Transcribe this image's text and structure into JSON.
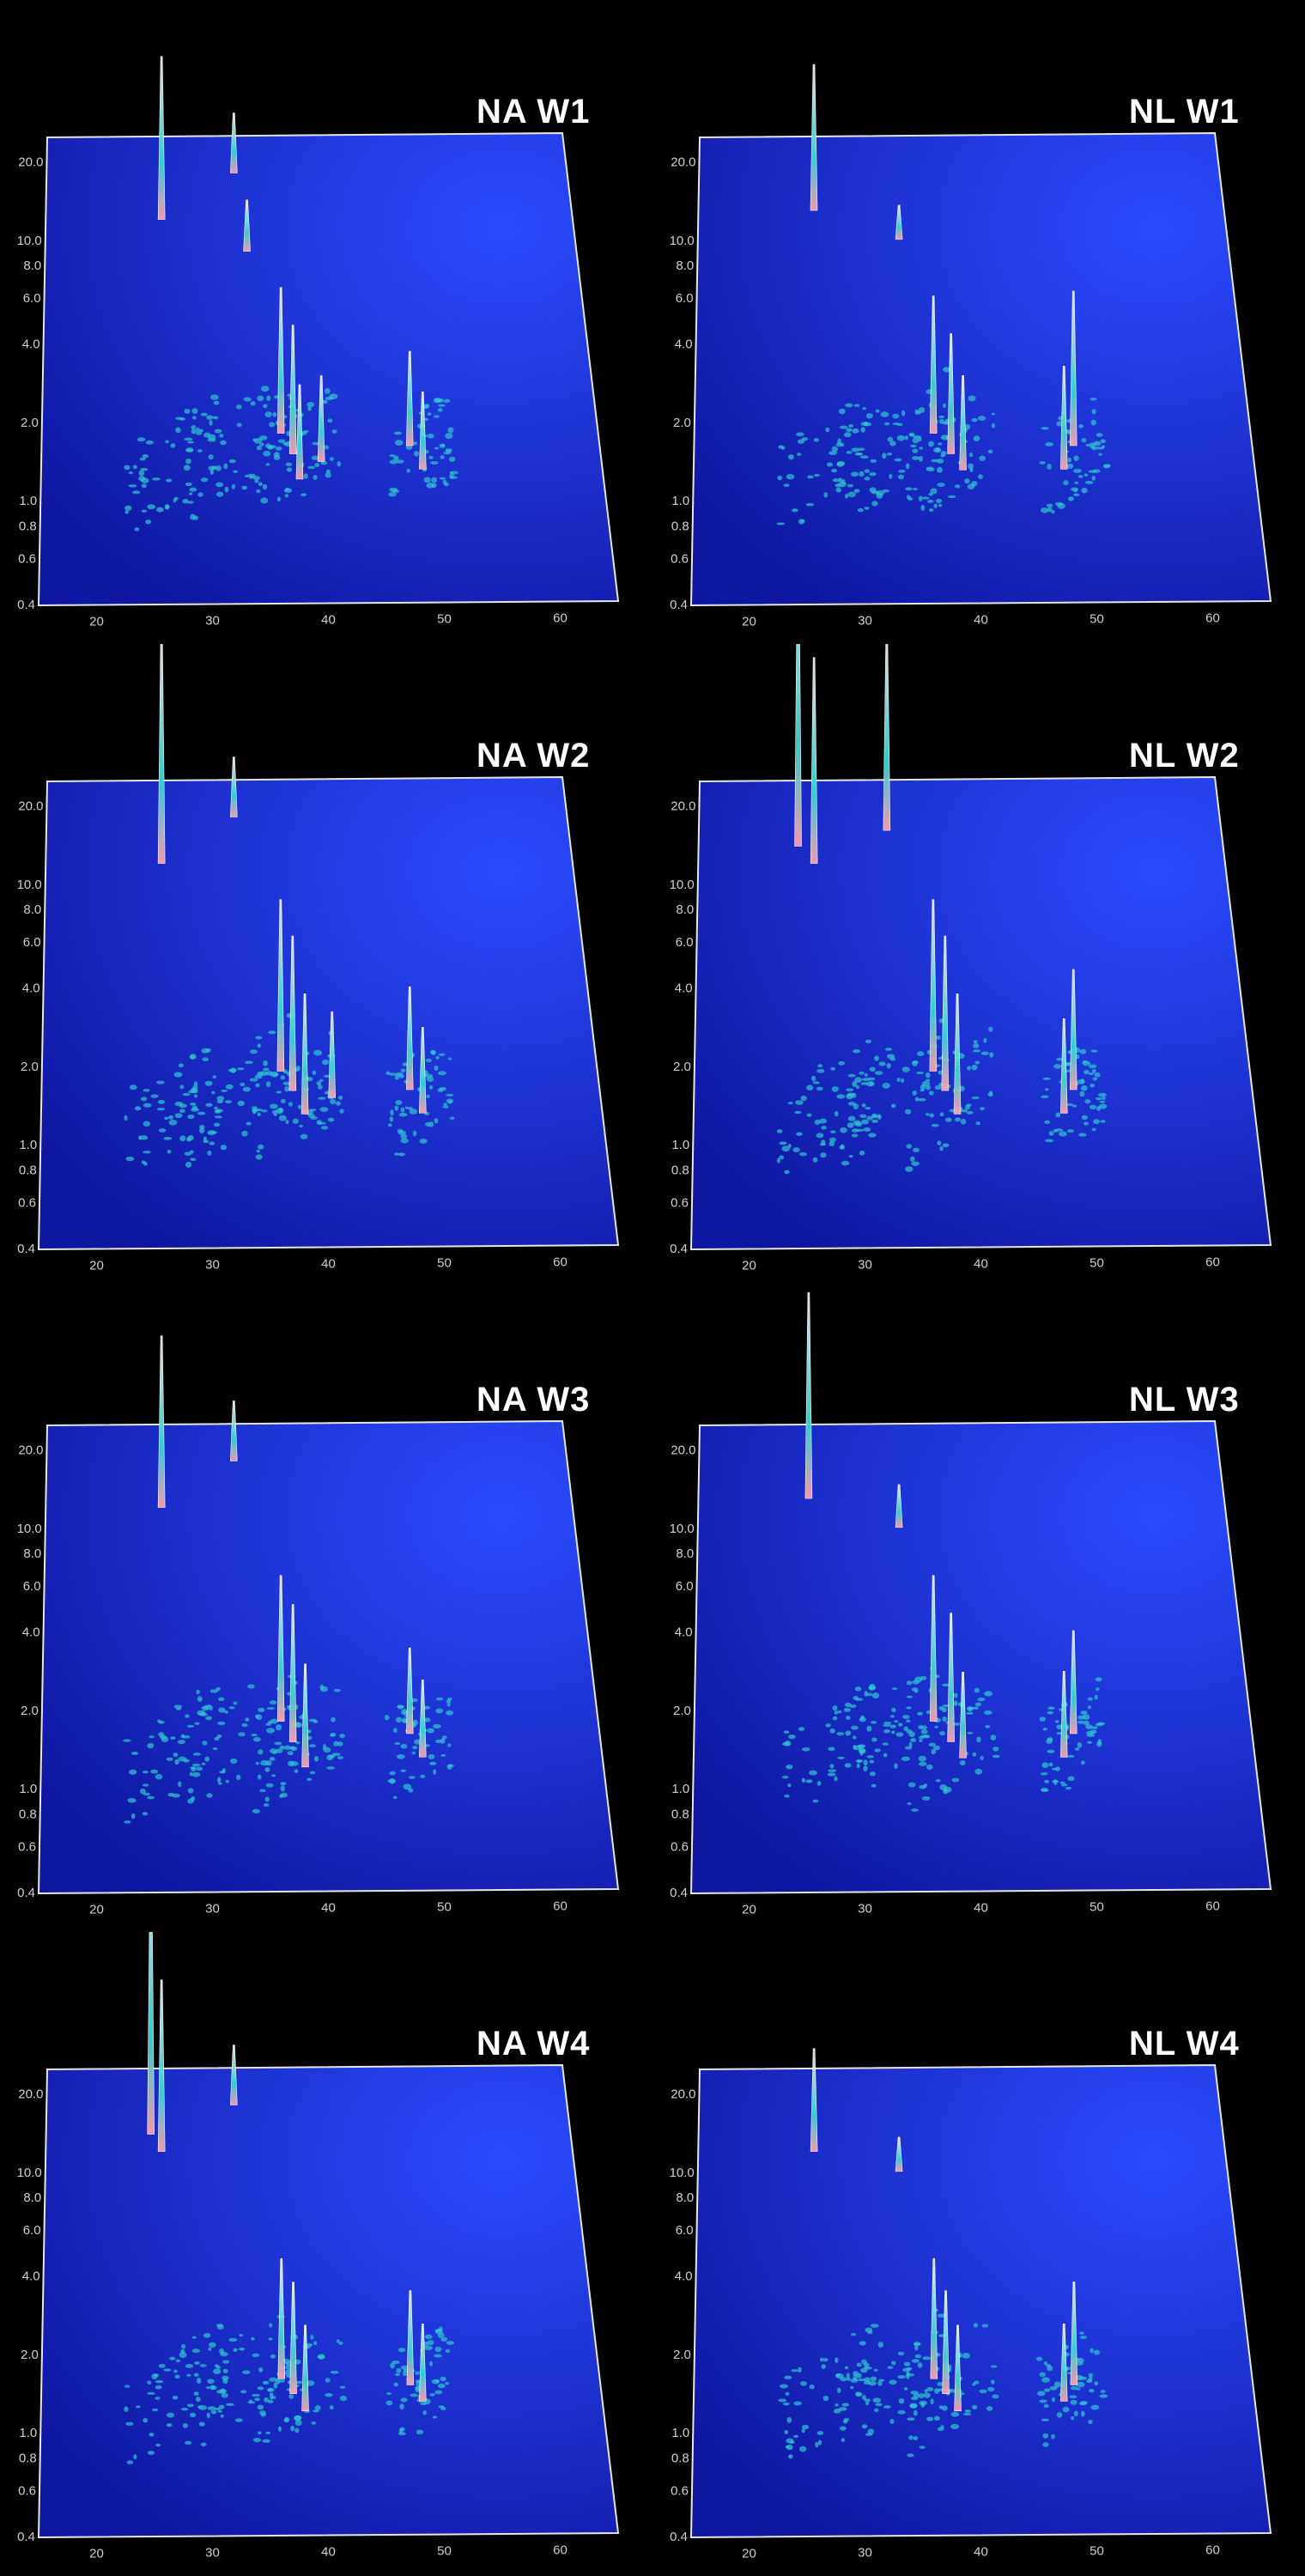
{
  "colors": {
    "background": "#000000",
    "plane_light": "#2a4cff",
    "plane_dark": "#0f16a0",
    "frame": "#e6e6e6",
    "peak_tall": "#f5f0f5",
    "peak_low": "#35d6d6",
    "noise": "#2fc7cf"
  },
  "chart_data": [
    {
      "type": "3d-surface",
      "title": "NA W1",
      "x_ticks": [
        "20",
        "30",
        "40",
        "50",
        "60"
      ],
      "y_ticks": [
        "0.4",
        "0.6",
        "0.8",
        "1.0",
        "2.0",
        "4.0",
        "6.0",
        "8.0",
        "10.0",
        "20.0"
      ],
      "peaks": [
        {
          "x": 26,
          "y": 12,
          "h": 0.95
        },
        {
          "x": 33,
          "y": 18,
          "h": 0.35
        },
        {
          "x": 34,
          "y": 9,
          "h": 0.3
        },
        {
          "x": 36.5,
          "y": 1.8,
          "h": 0.85
        },
        {
          "x": 37.5,
          "y": 1.5,
          "h": 0.75
        },
        {
          "x": 38,
          "y": 1.2,
          "h": 0.55
        },
        {
          "x": 40,
          "y": 1.4,
          "h": 0.5
        },
        {
          "x": 48,
          "y": 1.6,
          "h": 0.55
        },
        {
          "x": 49,
          "y": 1.3,
          "h": 0.45
        }
      ]
    },
    {
      "type": "3d-surface",
      "title": "NL W1",
      "x_ticks": [
        "20",
        "30",
        "40",
        "50",
        "60"
      ],
      "y_ticks": [
        "0.4",
        "0.6",
        "0.8",
        "1.0",
        "2.0",
        "4.0",
        "6.0",
        "8.0",
        "10.0",
        "20.0"
      ],
      "peaks": [
        {
          "x": 26,
          "y": 13,
          "h": 0.85
        },
        {
          "x": 34,
          "y": 10,
          "h": 0.2
        },
        {
          "x": 36.5,
          "y": 1.8,
          "h": 0.8
        },
        {
          "x": 38,
          "y": 1.5,
          "h": 0.7
        },
        {
          "x": 39,
          "y": 1.3,
          "h": 0.55
        },
        {
          "x": 49,
          "y": 1.6,
          "h": 0.9
        },
        {
          "x": 48,
          "y": 1.3,
          "h": 0.6
        }
      ]
    },
    {
      "type": "3d-surface",
      "title": "NA W2",
      "x_ticks": [
        "20",
        "30",
        "40",
        "50",
        "60"
      ],
      "y_ticks": [
        "0.4",
        "0.6",
        "0.8",
        "1.0",
        "2.0",
        "4.0",
        "6.0",
        "8.0",
        "10.0",
        "20.0"
      ],
      "peaks": [
        {
          "x": 26,
          "y": 12,
          "h": 1.35
        },
        {
          "x": 33,
          "y": 18,
          "h": 0.35
        },
        {
          "x": 36.5,
          "y": 1.9,
          "h": 1.0
        },
        {
          "x": 37.5,
          "y": 1.6,
          "h": 0.9
        },
        {
          "x": 38.5,
          "y": 1.3,
          "h": 0.7
        },
        {
          "x": 41,
          "y": 1.5,
          "h": 0.5
        },
        {
          "x": 48,
          "y": 1.6,
          "h": 0.6
        },
        {
          "x": 49,
          "y": 1.3,
          "h": 0.5
        }
      ]
    },
    {
      "type": "3d-surface",
      "title": "NL W2",
      "x_ticks": [
        "20",
        "30",
        "40",
        "50",
        "60"
      ],
      "y_ticks": [
        "0.4",
        "0.6",
        "0.8",
        "1.0",
        "2.0",
        "4.0",
        "6.0",
        "8.0",
        "10.0",
        "20.0"
      ],
      "peaks": [
        {
          "x": 24.5,
          "y": 14,
          "h": 1.7
        },
        {
          "x": 26,
          "y": 12,
          "h": 1.2
        },
        {
          "x": 33,
          "y": 16,
          "h": 1.15
        },
        {
          "x": 36.5,
          "y": 1.9,
          "h": 1.0
        },
        {
          "x": 37.5,
          "y": 1.6,
          "h": 0.9
        },
        {
          "x": 38.5,
          "y": 1.3,
          "h": 0.7
        },
        {
          "x": 49,
          "y": 1.6,
          "h": 0.7
        },
        {
          "x": 48,
          "y": 1.3,
          "h": 0.55
        }
      ]
    },
    {
      "type": "3d-surface",
      "title": "NA W3",
      "x_ticks": [
        "20",
        "30",
        "40",
        "50",
        "60"
      ],
      "y_ticks": [
        "0.4",
        "0.6",
        "0.8",
        "1.0",
        "2.0",
        "4.0",
        "6.0",
        "8.0",
        "10.0",
        "20.0"
      ],
      "peaks": [
        {
          "x": 26,
          "y": 12,
          "h": 1.0
        },
        {
          "x": 33,
          "y": 18,
          "h": 0.35
        },
        {
          "x": 36.5,
          "y": 1.8,
          "h": 0.85
        },
        {
          "x": 37.5,
          "y": 1.5,
          "h": 0.8
        },
        {
          "x": 38.5,
          "y": 1.2,
          "h": 0.6
        },
        {
          "x": 48,
          "y": 1.6,
          "h": 0.5
        },
        {
          "x": 49,
          "y": 1.3,
          "h": 0.45
        }
      ]
    },
    {
      "type": "3d-surface",
      "title": "NL W3",
      "x_ticks": [
        "20",
        "30",
        "40",
        "50",
        "60"
      ],
      "y_ticks": [
        "0.4",
        "0.6",
        "0.8",
        "1.0",
        "2.0",
        "4.0",
        "6.0",
        "8.0",
        "10.0",
        "20.0"
      ],
      "peaks": [
        {
          "x": 25.5,
          "y": 13,
          "h": 1.2
        },
        {
          "x": 34,
          "y": 10,
          "h": 0.25
        },
        {
          "x": 36.5,
          "y": 1.8,
          "h": 0.85
        },
        {
          "x": 38,
          "y": 1.5,
          "h": 0.75
        },
        {
          "x": 39,
          "y": 1.3,
          "h": 0.5
        },
        {
          "x": 49,
          "y": 1.6,
          "h": 0.6
        },
        {
          "x": 48,
          "y": 1.3,
          "h": 0.5
        }
      ]
    },
    {
      "type": "3d-surface",
      "title": "NA W4",
      "x_ticks": [
        "20",
        "30",
        "40",
        "50",
        "60"
      ],
      "y_ticks": [
        "0.4",
        "0.6",
        "0.8",
        "1.0",
        "2.0",
        "4.0",
        "6.0",
        "8.0",
        "10.0",
        "20.0"
      ],
      "peaks": [
        {
          "x": 25,
          "y": 14,
          "h": 1.6
        },
        {
          "x": 26,
          "y": 12,
          "h": 1.0
        },
        {
          "x": 33,
          "y": 18,
          "h": 0.35
        },
        {
          "x": 36.5,
          "y": 1.6,
          "h": 0.7
        },
        {
          "x": 37.5,
          "y": 1.4,
          "h": 0.65
        },
        {
          "x": 38.5,
          "y": 1.2,
          "h": 0.5
        },
        {
          "x": 48,
          "y": 1.5,
          "h": 0.55
        },
        {
          "x": 49,
          "y": 1.3,
          "h": 0.45
        }
      ]
    },
    {
      "type": "3d-surface",
      "title": "NL W4",
      "x_ticks": [
        "20",
        "30",
        "40",
        "50",
        "60"
      ],
      "y_ticks": [
        "0.4",
        "0.6",
        "0.8",
        "1.0",
        "2.0",
        "4.0",
        "6.0",
        "8.0",
        "10.0",
        "20.0"
      ],
      "peaks": [
        {
          "x": 26,
          "y": 12,
          "h": 0.6
        },
        {
          "x": 34,
          "y": 10,
          "h": 0.2
        },
        {
          "x": 36.5,
          "y": 1.6,
          "h": 0.7
        },
        {
          "x": 37.5,
          "y": 1.4,
          "h": 0.6
        },
        {
          "x": 38.5,
          "y": 1.2,
          "h": 0.5
        },
        {
          "x": 49,
          "y": 1.5,
          "h": 0.6
        },
        {
          "x": 48,
          "y": 1.3,
          "h": 0.45
        }
      ]
    }
  ]
}
